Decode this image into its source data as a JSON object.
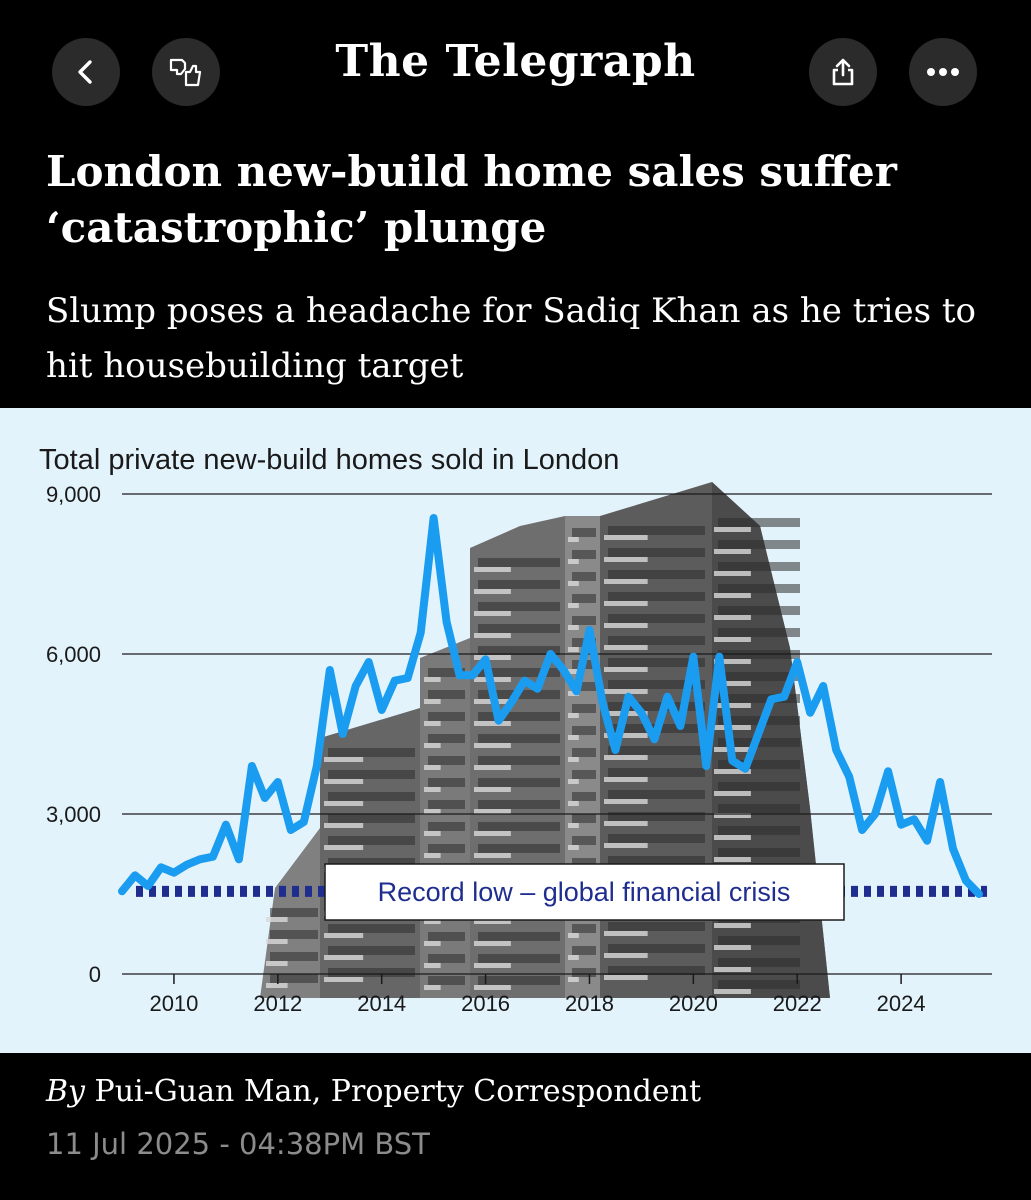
{
  "app": {
    "brand": "The Telegraph",
    "icons": {
      "back": "chevron-left-icon",
      "feedback": "thumbs-feedback-icon",
      "share": "share-icon",
      "more": "ellipsis-icon"
    }
  },
  "article": {
    "headline": "London new-build home sales suffer ‘catastrophic’ plunge",
    "standfirst": "Slump poses a headache for Sadiq Khan as he tries to hit housebuilding target",
    "byline_prefix": "By",
    "byline_author": "Pui-Guan Man, Property Correspondent",
    "date": "11 Jul 2025 - 04:38PM BST"
  },
  "chart_data": {
    "type": "line",
    "title": "Total private new-build homes sold in London",
    "ylim": [
      0,
      9000
    ],
    "yticks": [
      0,
      3000,
      6000,
      9000
    ],
    "ytick_labels": [
      "0",
      "3,000",
      "6,000",
      "9,000"
    ],
    "xlim": [
      2009,
      2025.75
    ],
    "xticks": [
      2010,
      2012,
      2014,
      2016,
      2018,
      2020,
      2022,
      2024
    ],
    "xtick_labels": [
      "2010",
      "2012",
      "2014",
      "2016",
      "2018",
      "2020",
      "2022",
      "2024"
    ],
    "grid": "horizontal",
    "series": [
      {
        "color": "#1a9df0",
        "x": [
          2009.0,
          2009.25,
          2009.5,
          2009.75,
          2010.0,
          2010.25,
          2010.5,
          2010.75,
          2011.0,
          2011.25,
          2011.5,
          2011.75,
          2012.0,
          2012.25,
          2012.5,
          2012.75,
          2013.0,
          2013.25,
          2013.5,
          2013.75,
          2014.0,
          2014.25,
          2014.5,
          2014.75,
          2015.0,
          2015.25,
          2015.5,
          2015.75,
          2016.0,
          2016.25,
          2016.5,
          2016.75,
          2017.0,
          2017.25,
          2017.5,
          2017.75,
          2018.0,
          2018.25,
          2018.5,
          2018.75,
          2019.0,
          2019.25,
          2019.5,
          2019.75,
          2020.0,
          2020.25,
          2020.5,
          2020.75,
          2021.0,
          2021.25,
          2021.5,
          2021.75,
          2022.0,
          2022.25,
          2022.5,
          2022.75,
          2023.0,
          2023.25,
          2023.5,
          2023.75,
          2024.0,
          2024.25,
          2024.5,
          2024.75,
          2025.0,
          2025.25,
          2025.5
        ],
        "values": [
          1550,
          1850,
          1650,
          2000,
          1900,
          2050,
          2150,
          2200,
          2800,
          2150,
          3900,
          3300,
          3600,
          2700,
          2850,
          3900,
          5700,
          4500,
          5400,
          5850,
          4950,
          5500,
          5550,
          6400,
          8550,
          6600,
          5600,
          5600,
          5900,
          4750,
          5100,
          5500,
          5350,
          6000,
          5700,
          5300,
          6450,
          5100,
          4200,
          5200,
          4900,
          4400,
          5200,
          4650,
          5950,
          3900,
          5950,
          4000,
          3850,
          4500,
          5150,
          5200,
          5850,
          4900,
          5400,
          4200,
          3700,
          2700,
          3000,
          3800,
          2800,
          2900,
          2500,
          3600,
          2350,
          1750,
          1500
        ]
      }
    ],
    "reference_line": {
      "value": 1550,
      "style": "dotted",
      "color": "#1f2d8f",
      "label": "Record low – global financial crisis"
    }
  }
}
